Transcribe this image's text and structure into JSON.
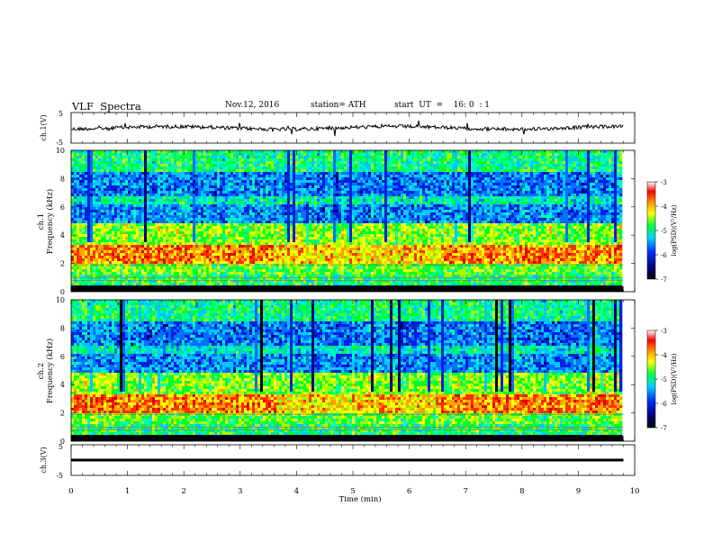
{
  "header": {
    "title": "VLF  Spectra",
    "date": "Nov.12, 2016",
    "station": "station= ATH",
    "start_ut": "start  UT  =    16: 0  : 1"
  },
  "chart_data": [
    {
      "type": "line",
      "panel": "ch1-waveform",
      "ylabel": "ch.1(V)",
      "ylim": [
        -5,
        5
      ],
      "ytick_labels": [
        "5",
        "-5"
      ],
      "xlim": [
        0,
        10
      ],
      "series": [
        {
          "color": "#000000"
        }
      ]
    },
    {
      "type": "heatmap",
      "panel": "ch1-spectrogram",
      "ylabel_top": "ch.1",
      "ylabel": "Frequency  (kHz)",
      "ylim": [
        0,
        10
      ],
      "ytick_labels": [
        "0",
        "2",
        "4",
        "6",
        "8",
        "10"
      ],
      "xlim": [
        0,
        10
      ],
      "colorbar": {
        "label": "log(PSD)(V²/Hz)",
        "range": [
          -7,
          -3
        ],
        "tick_labels": [
          "-3",
          "-4",
          "-5",
          "-6",
          "-7"
        ]
      },
      "intense_bands_khz": [
        [
          2.0,
          3.2
        ]
      ],
      "quiet_bands_khz": [
        [
          4.8,
          8.5
        ]
      ]
    },
    {
      "type": "heatmap",
      "panel": "ch2-spectrogram",
      "ylabel_top": "ch.2",
      "ylabel": "Frequency  (kHz)",
      "ylim": [
        0,
        10
      ],
      "ytick_labels": [
        "0",
        "2",
        "4",
        "6",
        "8",
        "10"
      ],
      "xlim": [
        0,
        10
      ],
      "colorbar": {
        "label": "log(PSD)(V²/Hz)",
        "range": [
          -7,
          -3
        ],
        "tick_labels": [
          "-3",
          "-4",
          "-5",
          "-6",
          "-7"
        ]
      },
      "intense_bands_khz": [
        [
          2.0,
          3.0
        ]
      ],
      "quiet_bands_khz": [
        [
          4.8,
          8.5
        ]
      ]
    },
    {
      "type": "line",
      "panel": "ch3-waveform",
      "ylabel": "ch.3(V)",
      "ylim": [
        -5,
        5
      ],
      "ytick_labels": [
        "5",
        "-5"
      ],
      "xlim": [
        0,
        10
      ],
      "series": [
        {
          "color": "#000000"
        }
      ]
    }
  ],
  "x_axis": {
    "label": "Time  (min)",
    "ticks": [
      "0",
      "1",
      "2",
      "3",
      "4",
      "5",
      "6",
      "7",
      "8",
      "9",
      "10"
    ],
    "data_end_min": 9.8
  }
}
